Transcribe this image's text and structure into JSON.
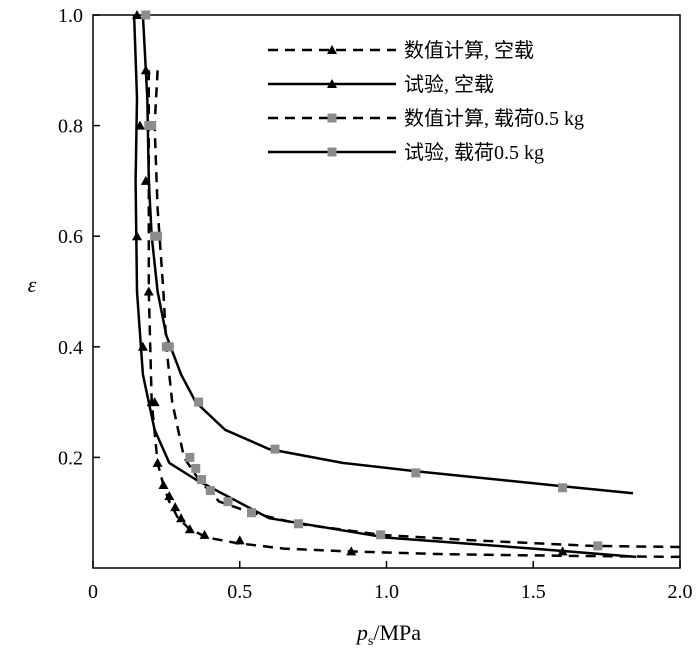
{
  "chart_data": {
    "type": "line",
    "title": "",
    "xlabel_main": "p",
    "xlabel_sub": "s",
    "xlabel_unit": "/MPa",
    "ylabel": "ε",
    "xlim": [
      0,
      2.0
    ],
    "ylim": [
      0,
      1.0
    ],
    "x_ticks": [
      0,
      0.5,
      1.0,
      1.5,
      2.0
    ],
    "x_tick_labels": [
      "0",
      "0.5",
      "1.0",
      "1.5",
      "2.0"
    ],
    "y_ticks": [
      0.2,
      0.4,
      0.6,
      0.8,
      1.0
    ],
    "y_tick_labels": [
      "0.2",
      "0.4",
      "0.6",
      "0.8",
      "1.0"
    ],
    "grid": false,
    "legend_position": "top-right",
    "series": [
      {
        "name": "数值计算, 空载",
        "line": "dashed",
        "marker": "triangle",
        "color": "#000000",
        "points": [
          [
            0.19,
            0.9
          ],
          [
            0.19,
            0.7
          ],
          [
            0.19,
            0.5
          ],
          [
            0.2,
            0.3
          ],
          [
            0.22,
            0.19
          ],
          [
            0.24,
            0.15
          ],
          [
            0.26,
            0.12
          ],
          [
            0.29,
            0.09
          ],
          [
            0.33,
            0.07
          ],
          [
            0.39,
            0.055
          ],
          [
            0.49,
            0.045
          ],
          [
            0.65,
            0.035
          ],
          [
            0.87,
            0.03
          ],
          [
            1.2,
            0.025
          ],
          [
            1.6,
            0.022
          ],
          [
            2.0,
            0.02
          ]
        ],
        "marker_points": [
          [
            0.18,
            0.9
          ],
          [
            0.18,
            0.7
          ],
          [
            0.19,
            0.5
          ],
          [
            0.2,
            0.3
          ],
          [
            0.22,
            0.19
          ],
          [
            0.24,
            0.15
          ],
          [
            0.26,
            0.13
          ],
          [
            0.28,
            0.11
          ],
          [
            0.3,
            0.09
          ],
          [
            0.33,
            0.07
          ],
          [
            0.38,
            0.06
          ],
          [
            0.5,
            0.05
          ],
          [
            0.88,
            0.03
          ],
          [
            1.6,
            0.03
          ]
        ]
      },
      {
        "name": "试验, 空载",
        "line": "solid",
        "marker": "triangle",
        "color": "#000000",
        "points": [
          [
            0.14,
            1.0
          ],
          [
            0.15,
            0.85
          ],
          [
            0.145,
            0.7
          ],
          [
            0.15,
            0.5
          ],
          [
            0.17,
            0.35
          ],
          [
            0.21,
            0.25
          ],
          [
            0.26,
            0.19
          ],
          [
            0.35,
            0.16
          ],
          [
            0.6,
            0.09
          ],
          [
            1.0,
            0.055
          ],
          [
            1.5,
            0.035
          ],
          [
            1.85,
            0.02
          ]
        ],
        "marker_points": [
          [
            0.15,
            1.0
          ],
          [
            0.16,
            0.8
          ],
          [
            0.15,
            0.6
          ],
          [
            0.17,
            0.4
          ],
          [
            0.21,
            0.3
          ]
        ]
      },
      {
        "name": "数值计算, 载荷0.5 kg",
        "line": "dashed",
        "marker": "square",
        "color": "#808080",
        "points": [
          [
            0.22,
            0.9
          ],
          [
            0.21,
            0.8
          ],
          [
            0.22,
            0.65
          ],
          [
            0.24,
            0.5
          ],
          [
            0.25,
            0.4
          ],
          [
            0.27,
            0.3
          ],
          [
            0.31,
            0.2
          ],
          [
            0.36,
            0.16
          ],
          [
            0.43,
            0.12
          ],
          [
            0.54,
            0.1
          ],
          [
            0.7,
            0.08
          ],
          [
            0.98,
            0.06
          ],
          [
            1.3,
            0.05
          ],
          [
            1.7,
            0.04
          ],
          [
            2.0,
            0.038
          ]
        ],
        "marker_points": [
          [
            0.2,
            0.8
          ],
          [
            0.22,
            0.6
          ],
          [
            0.25,
            0.4
          ],
          [
            0.33,
            0.2
          ],
          [
            0.35,
            0.18
          ],
          [
            0.37,
            0.16
          ],
          [
            0.4,
            0.14
          ],
          [
            0.46,
            0.12
          ],
          [
            0.54,
            0.1
          ],
          [
            0.7,
            0.08
          ],
          [
            0.98,
            0.06
          ],
          [
            1.72,
            0.04
          ]
        ]
      },
      {
        "name": "试验, 载荷0.5 kg",
        "line": "solid",
        "marker": "square",
        "color": "#000000",
        "points": [
          [
            0.17,
            1.0
          ],
          [
            0.185,
            0.85
          ],
          [
            0.19,
            0.7
          ],
          [
            0.2,
            0.6
          ],
          [
            0.22,
            0.5
          ],
          [
            0.25,
            0.42
          ],
          [
            0.3,
            0.35
          ],
          [
            0.35,
            0.3
          ],
          [
            0.45,
            0.25
          ],
          [
            0.6,
            0.215
          ],
          [
            0.85,
            0.19
          ],
          [
            1.1,
            0.175
          ],
          [
            1.6,
            0.148
          ],
          [
            1.84,
            0.135
          ]
        ],
        "marker_points": [
          [
            0.18,
            1.0
          ],
          [
            0.19,
            0.8
          ],
          [
            0.21,
            0.6
          ],
          [
            0.26,
            0.4
          ],
          [
            0.36,
            0.3
          ],
          [
            0.62,
            0.215
          ],
          [
            1.1,
            0.172
          ],
          [
            1.6,
            0.145
          ]
        ]
      }
    ]
  }
}
